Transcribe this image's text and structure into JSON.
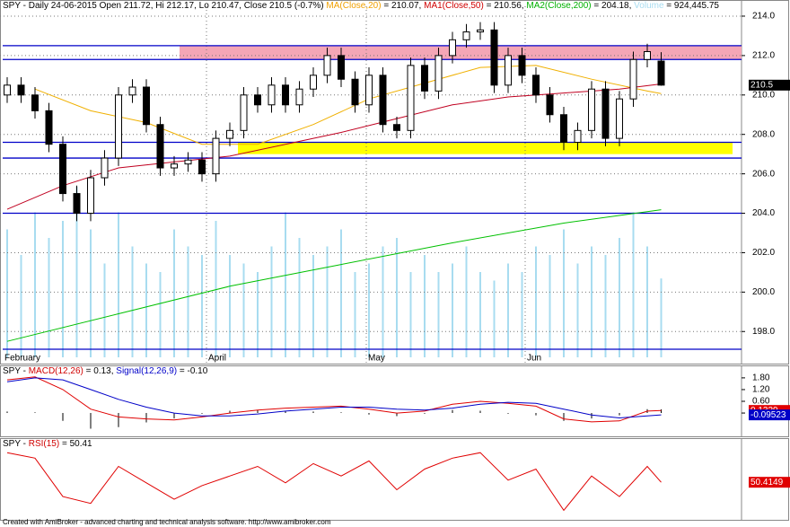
{
  "chart_data": [
    {
      "type": "candlestick",
      "title_parts": [
        {
          "text": "SPY - Daily 24-06-2015 Open 211.72, Hi 212.17, Lo 210.47, Close 210.5 (-0.7%) ",
          "color": "#000000"
        },
        {
          "text": "MA(Close,20)",
          "color": "#f0a000"
        },
        {
          "text": " = 210.07, ",
          "color": "#000000"
        },
        {
          "text": "MA1(Close,50)",
          "color": "#d00000"
        },
        {
          "text": " = 210.56, ",
          "color": "#000000"
        },
        {
          "text": "MA2(Close,200)",
          "color": "#00b000"
        },
        {
          "text": " = 204.18, ",
          "color": "#000000"
        },
        {
          "text": "Volume",
          "color": "#a8dcf0"
        },
        {
          "text": " = 924,445.75",
          "color": "#000000"
        }
      ],
      "open": [
        210.0,
        210.5,
        210.0,
        209.2,
        207.5,
        205.0,
        204.0,
        205.8,
        206.8,
        210.0,
        210.4,
        208.5,
        206.3,
        206.5,
        206.7,
        206.0,
        207.8,
        208.2,
        210.0,
        209.5,
        210.5,
        209.5,
        210.3,
        211.0,
        212.0,
        210.8,
        209.5,
        211.0,
        208.5,
        208.2,
        211.5,
        210.2,
        212.0,
        212.8,
        213.2,
        213.3,
        210.5,
        212.0,
        211.0,
        210.0,
        209.0,
        207.6,
        208.2,
        210.3,
        207.8,
        209.8,
        211.8,
        211.72
      ],
      "high": [
        210.9,
        210.9,
        210.4,
        209.6,
        207.9,
        205.4,
        206.2,
        207.2,
        210.4,
        210.8,
        210.8,
        208.9,
        206.9,
        207.1,
        207.1,
        208.2,
        208.6,
        210.4,
        210.4,
        210.9,
        210.9,
        210.7,
        211.4,
        212.4,
        212.4,
        211.2,
        211.4,
        211.4,
        208.9,
        211.9,
        211.9,
        212.4,
        213.2,
        213.6,
        213.7,
        213.7,
        212.4,
        212.4,
        211.4,
        210.4,
        209.4,
        208.6,
        210.7,
        210.7,
        210.2,
        212.2,
        212.6,
        212.17
      ],
      "low": [
        209.6,
        209.6,
        208.8,
        207.1,
        204.6,
        203.6,
        203.6,
        205.4,
        206.4,
        209.6,
        208.1,
        205.9,
        205.9,
        206.1,
        205.6,
        205.6,
        207.4,
        207.8,
        209.1,
        209.1,
        209.1,
        209.1,
        209.9,
        210.6,
        210.4,
        209.1,
        209.1,
        208.1,
        207.8,
        207.8,
        209.8,
        209.8,
        211.6,
        212.4,
        212.8,
        210.1,
        210.1,
        210.6,
        209.6,
        208.6,
        207.2,
        207.2,
        207.8,
        207.4,
        207.4,
        209.4,
        211.4,
        210.47
      ],
      "close": [
        210.5,
        210.0,
        209.2,
        207.5,
        205.0,
        204.0,
        205.8,
        206.8,
        210.0,
        210.4,
        208.5,
        206.3,
        206.5,
        206.7,
        206.0,
        207.8,
        208.2,
        210.0,
        209.5,
        210.5,
        209.5,
        210.3,
        211.0,
        212.0,
        210.8,
        209.5,
        211.0,
        208.5,
        208.2,
        211.5,
        210.2,
        212.0,
        212.8,
        213.2,
        213.3,
        210.5,
        212.0,
        211.0,
        210.0,
        209.0,
        207.6,
        208.2,
        210.3,
        207.8,
        209.8,
        211.8,
        212.2,
        210.5
      ],
      "ylim": [
        196.6,
        214.5
      ],
      "yticks": [
        {
          "value": 198,
          "label": "198.0"
        },
        {
          "value": 200,
          "label": "200.0"
        },
        {
          "value": 202,
          "label": "202.0"
        },
        {
          "value": 204,
          "label": "204.0"
        },
        {
          "value": 206,
          "label": "206.0"
        },
        {
          "value": 208,
          "label": "208.0"
        },
        {
          "value": 210,
          "label": "210.0"
        },
        {
          "value": 212,
          "label": "212.0"
        },
        {
          "value": 214,
          "label": "214.0"
        }
      ],
      "grid": true,
      "x_labels": [
        "February",
        "April",
        "May",
        "Jun"
      ],
      "volume": {
        "color": "#a8dcf0",
        "ylim": [
          0,
          2400000
        ],
        "values": [
          1500000,
          1200000,
          1700000,
          1400000,
          1600000,
          2000000,
          1500000,
          1100000,
          1700000,
          1300000,
          1100000,
          1000000,
          1500000,
          1300000,
          1200000,
          1600000,
          1200000,
          1100000,
          1000000,
          1300000,
          1700000,
          1400000,
          1200000,
          1300000,
          1500000,
          1000000,
          1100000,
          1300000,
          1400000,
          1000000,
          1200000,
          1000000,
          1100000,
          1300000,
          1000000,
          900000,
          1100000,
          1000000,
          1300000,
          1200000,
          1500000,
          1100000,
          1300000,
          1200000,
          1400000,
          1700000,
          1300000,
          924445.75
        ]
      },
      "lines": [
        {
          "color": "#f0b000",
          "x": [
            2,
            6,
            10,
            14,
            18,
            22,
            26,
            30,
            34,
            38,
            42,
            46,
            47
          ],
          "values": [
            210.3,
            209.2,
            208.6,
            207.5,
            207.5,
            208.5,
            209.8,
            210.6,
            211.4,
            211.5,
            210.8,
            210.2,
            210.07
          ]
        },
        {
          "color": "#c00020",
          "x": [
            0,
            4,
            8,
            12,
            16,
            20,
            24,
            28,
            32,
            36,
            40,
            44,
            47
          ],
          "values": [
            204.2,
            205.4,
            206.3,
            206.6,
            206.9,
            207.5,
            208.1,
            208.8,
            209.5,
            209.9,
            210.1,
            210.3,
            210.56
          ]
        },
        {
          "color": "#00c000",
          "x": [
            0,
            8,
            16,
            24,
            32,
            40,
            47
          ],
          "values": [
            197.5,
            198.9,
            200.3,
            201.4,
            202.5,
            203.5,
            204.18
          ]
        }
      ],
      "hlines": {
        "color": "#0000c8",
        "values": [
          212.5,
          211.8,
          207.6,
          206.8,
          204.0,
          197.1
        ]
      },
      "bands": [
        {
          "color": "#f4a6b6",
          "range": [
            211.8,
            212.5
          ]
        },
        {
          "color": "#ffff00",
          "range": [
            207.0,
            207.6
          ]
        }
      ]
    },
    {
      "type": "line",
      "title_parts": [
        {
          "text": "SPY - ",
          "color": "#000000"
        },
        {
          "text": "MACD(12,26)",
          "color": "#d00000"
        },
        {
          "text": " = 0.13, ",
          "color": "#000000"
        },
        {
          "text": "Signal(12,26,9)",
          "color": "#0000c8"
        },
        {
          "text": " = -0.10",
          "color": "#000000"
        }
      ],
      "ylim": [
        -1.1,
        2.3
      ],
      "yticks": [
        {
          "value": 1.8,
          "label": "1.80"
        },
        {
          "value": 1.2,
          "label": "1.20"
        },
        {
          "value": 0.6,
          "label": "0.60"
        },
        {
          "value": 0,
          "label": "0.00"
        }
      ],
      "series": [
        {
          "color": "#e00000",
          "x": [
            0,
            2,
            4,
            6,
            8,
            10,
            12,
            14,
            16,
            18,
            20,
            22,
            24,
            26,
            28,
            30,
            32,
            34,
            36,
            38,
            40,
            42,
            44,
            46,
            47
          ],
          "values": [
            1.7,
            1.85,
            1.2,
            0.2,
            -0.2,
            -0.3,
            -0.35,
            -0.2,
            0.0,
            0.15,
            0.25,
            0.3,
            0.35,
            0.2,
            0.0,
            0.1,
            0.45,
            0.6,
            0.5,
            0.35,
            -0.3,
            -0.45,
            -0.4,
            0.1,
            0.1329
          ]
        },
        {
          "color": "#0000c8",
          "x": [
            0,
            2,
            4,
            6,
            8,
            10,
            12,
            14,
            16,
            18,
            20,
            22,
            24,
            26,
            28,
            30,
            32,
            34,
            36,
            38,
            40,
            42,
            44,
            46,
            47
          ],
          "values": [
            1.6,
            1.8,
            1.7,
            1.2,
            0.7,
            0.3,
            0.0,
            -0.15,
            -0.15,
            -0.05,
            0.1,
            0.2,
            0.3,
            0.3,
            0.2,
            0.15,
            0.25,
            0.45,
            0.55,
            0.5,
            0.2,
            -0.1,
            -0.25,
            -0.15,
            -0.09523
          ]
        }
      ],
      "histogram": {
        "color": "#000000",
        "x": [
          0,
          2,
          4,
          6,
          8,
          10,
          12,
          14,
          16,
          18,
          20,
          22,
          24,
          26,
          28,
          30,
          32,
          34,
          36,
          38,
          40,
          42,
          44,
          46,
          47
        ],
        "values": [
          0.1,
          0.05,
          -0.5,
          -1.0,
          -0.9,
          -0.6,
          -0.35,
          -0.05,
          0.15,
          0.2,
          0.15,
          0.1,
          0.05,
          -0.1,
          -0.2,
          -0.05,
          0.2,
          0.15,
          -0.05,
          -0.15,
          -0.5,
          -0.35,
          -0.15,
          0.25,
          0.23
        ]
      }
    },
    {
      "type": "line",
      "title_parts": [
        {
          "text": "SPY - ",
          "color": "#000000"
        },
        {
          "text": "RSI(15)",
          "color": "#d00000"
        },
        {
          "text": " = 50.41",
          "color": "#000000"
        }
      ],
      "ylim": [
        25,
        80
      ],
      "series": [
        {
          "color": "#e00000",
          "x": [
            0,
            2,
            4,
            6,
            8,
            10,
            12,
            14,
            16,
            18,
            20,
            22,
            24,
            26,
            28,
            30,
            32,
            34,
            36,
            38,
            40,
            42,
            44,
            46,
            47
          ],
          "values": [
            72,
            68,
            40,
            35,
            62,
            50,
            38,
            48,
            55,
            62,
            50,
            64,
            55,
            66,
            45,
            60,
            68,
            72,
            52,
            60,
            30,
            55,
            40,
            62,
            50.4149
          ]
        }
      ]
    }
  ],
  "footer": "Created with AmiBroker - advanced charting and technical analysis software. http://www.amibroker.com"
}
